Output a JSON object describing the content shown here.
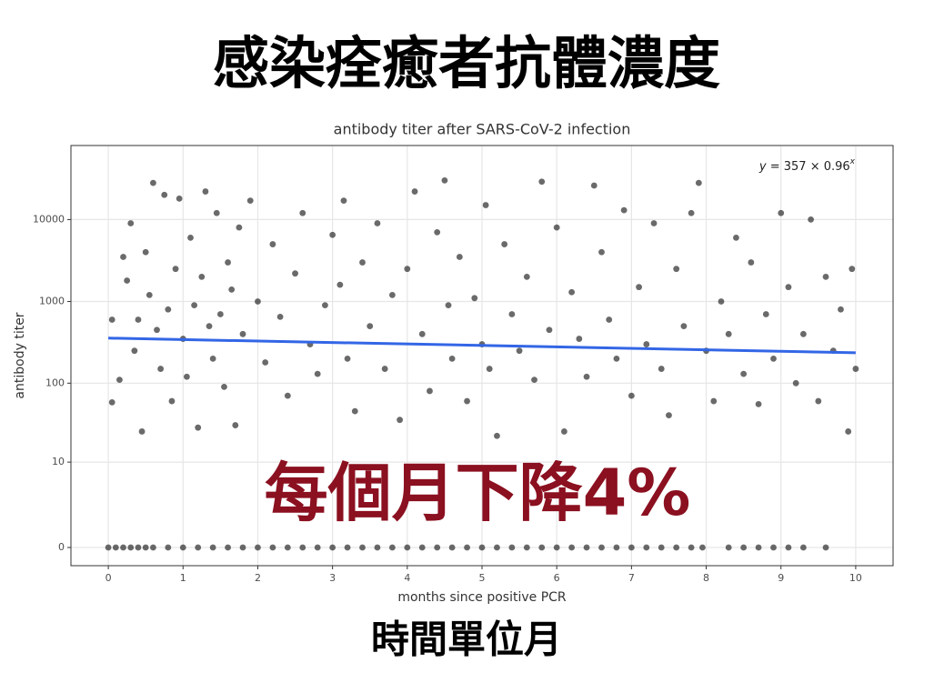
{
  "slide_title": "感染痊癒者抗體濃度",
  "overlay": "每個月下降4%",
  "footer": "時間單位月",
  "chart_data": {
    "type": "scatter",
    "title": "antibody titer after SARS-CoV-2 infection",
    "x_label": "months since positive PCR",
    "y_label": "antibody titer",
    "annotation": [
      "y",
      " = 357 × 0.96",
      "x"
    ],
    "y_transform": "log10(y+1)",
    "xlim": [
      -0.5,
      10.5
    ],
    "ylim": [
      -0.4,
      80000
    ],
    "xticks": [
      0,
      1,
      2,
      3,
      4,
      5,
      6,
      7,
      8,
      9,
      10
    ],
    "yticks": [
      0,
      10,
      100,
      1000,
      10000
    ],
    "grid": true,
    "color": "#1a1a1a",
    "x": [
      0.05,
      0.05,
      0.15,
      0.2,
      0.25,
      0.3,
      0.35,
      0.4,
      0.45,
      0.5,
      0.55,
      0.6,
      0.65,
      0.7,
      0.75,
      0.8,
      0.85,
      0.9,
      0.95,
      1.0,
      1.05,
      1.1,
      1.15,
      1.2,
      1.25,
      1.3,
      1.35,
      1.4,
      1.45,
      1.5,
      1.55,
      1.6,
      1.65,
      1.7,
      1.75,
      1.8,
      1.9,
      2.0,
      2.1,
      2.2,
      2.3,
      2.4,
      2.5,
      2.6,
      2.7,
      2.8,
      2.9,
      3.0,
      3.1,
      3.15,
      3.2,
      3.3,
      3.4,
      3.5,
      3.6,
      3.7,
      3.8,
      3.9,
      4.0,
      4.1,
      4.2,
      4.3,
      4.4,
      4.5,
      4.55,
      4.6,
      4.7,
      4.8,
      4.9,
      5.0,
      5.05,
      5.1,
      5.2,
      5.3,
      5.4,
      5.5,
      5.6,
      5.7,
      5.8,
      5.9,
      6.0,
      6.1,
      6.2,
      6.3,
      6.4,
      6.5,
      6.6,
      6.7,
      6.8,
      6.9,
      7.0,
      7.1,
      7.2,
      7.3,
      7.4,
      7.5,
      7.6,
      7.7,
      7.8,
      7.9,
      8.0,
      8.1,
      8.2,
      8.3,
      8.4,
      8.5,
      8.6,
      8.7,
      8.8,
      8.9,
      9.0,
      9.1,
      9.2,
      9.3,
      9.4,
      9.5,
      9.6,
      9.7,
      9.8,
      9.9,
      9.95,
      10.0,
      0.0,
      0.1,
      0.2,
      0.3,
      0.4,
      0.5,
      0.6,
      0.8,
      1.0,
      1.2,
      1.4,
      1.6,
      1.8,
      2.0,
      2.2,
      2.4,
      2.6,
      2.8,
      3.0,
      3.2,
      3.4,
      3.6,
      3.8,
      4.0,
      4.2,
      4.4,
      4.6,
      4.8,
      5.0,
      5.2,
      5.4,
      5.6,
      5.8,
      6.0,
      6.2,
      6.4,
      6.6,
      6.8,
      7.0,
      7.2,
      7.4,
      7.6,
      7.8,
      7.95,
      8.3,
      8.5,
      8.7,
      8.9,
      9.1,
      9.3,
      9.6
    ],
    "values": [
      600,
      58,
      110,
      3500,
      1800,
      9000,
      250,
      600,
      25,
      4000,
      1200,
      28000,
      450,
      150,
      20000,
      800,
      60,
      2500,
      18000,
      350,
      120,
      6000,
      900,
      28,
      2000,
      22000,
      500,
      200,
      12000,
      700,
      90,
      3000,
      1400,
      30,
      8000,
      400,
      17000,
      1000,
      180,
      5000,
      650,
      70,
      2200,
      12000,
      300,
      130,
      900,
      6500,
      1600,
      17000,
      200,
      45,
      3000,
      500,
      9000,
      150,
      1200,
      35,
      2500,
      22000,
      400,
      80,
      7000,
      30000,
      900,
      200,
      3500,
      60,
      1100,
      300,
      15000,
      150,
      22,
      5000,
      700,
      250,
      2000,
      110,
      29000,
      450,
      8000,
      25,
      1300,
      350,
      120,
      26000,
      4000,
      600,
      200,
      13000,
      70,
      1500,
      300,
      9000,
      150,
      40,
      2500,
      500,
      12000,
      28000,
      250,
      60,
      1000,
      400,
      6000,
      130,
      3000,
      55,
      700,
      200,
      12000,
      1500,
      100,
      400,
      10000,
      60,
      2000,
      250,
      800,
      25,
      2500,
      150,
      0,
      0,
      0,
      0,
      0,
      0,
      0,
      0,
      0,
      0,
      0,
      0,
      0,
      0,
      0,
      0,
      0,
      0,
      0,
      0,
      0,
      0,
      0,
      0,
      0,
      0,
      0,
      0,
      0,
      0,
      0,
      0,
      0,
      0,
      0,
      0,
      0,
      0,
      0,
      0,
      0,
      0,
      0,
      0,
      0,
      0,
      0,
      0,
      0,
      0,
      0
    ],
    "fit": {
      "x": [
        0,
        10
      ],
      "values": [
        357,
        236
      ],
      "color": "#3366e6"
    }
  }
}
